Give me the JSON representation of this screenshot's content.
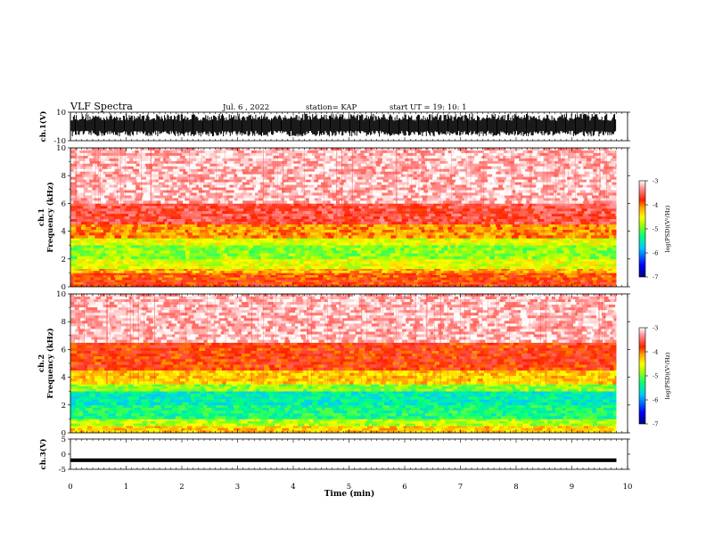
{
  "header": {
    "title": "VLF Spectra",
    "date": "Jul. 6 , 2022",
    "station": "station= KAP",
    "start": "start UT =  19: 10: 1"
  },
  "chart_data": [
    {
      "type": "line",
      "name": "ch1-waveform",
      "ylabel": "ch.1(V)",
      "ylim": [
        -10,
        10
      ],
      "y_ticks": [
        "10",
        "-10"
      ],
      "xlim": [
        0,
        10
      ],
      "note": "dense saturated waveform filling most of the range, from about -7 V to 9 V"
    },
    {
      "type": "heatmap",
      "name": "ch1-spectrogram",
      "ylabel": "ch.1\nFrequency (kHz)",
      "ylim": [
        0,
        10
      ],
      "y_ticks": [
        "0",
        "2",
        "4",
        "6",
        "8",
        "10"
      ],
      "xlim": [
        0,
        9.8
      ],
      "bands": [
        {
          "from_khz": 0.0,
          "to_khz": 0.5,
          "level": -3.8
        },
        {
          "from_khz": 0.5,
          "to_khz": 1.0,
          "level": -3.9
        },
        {
          "from_khz": 1.0,
          "to_khz": 1.3,
          "level": -4.2
        },
        {
          "from_khz": 1.3,
          "to_khz": 2.0,
          "level": -4.6
        },
        {
          "from_khz": 2.0,
          "to_khz": 3.0,
          "level": -4.9
        },
        {
          "from_khz": 3.0,
          "to_khz": 3.5,
          "level": -4.6
        },
        {
          "from_khz": 3.5,
          "to_khz": 4.5,
          "level": -4.1
        },
        {
          "from_khz": 4.5,
          "to_khz": 6.0,
          "level": -3.6
        },
        {
          "from_khz": 6.0,
          "to_khz": 10.0,
          "level": -3.2
        }
      ],
      "colorbar": {
        "label": "log(PSD)(V²/Hz)",
        "range": [
          -7,
          -3
        ],
        "ticks": [
          "-3",
          "-4",
          "-5",
          "-6",
          "-7"
        ]
      }
    },
    {
      "type": "heatmap",
      "name": "ch2-spectrogram",
      "ylabel": "ch.2\nFrequency (kHz)",
      "ylim": [
        0,
        10
      ],
      "y_ticks": [
        "0",
        "2",
        "4",
        "6",
        "8",
        "10"
      ],
      "xlim": [
        0,
        9.8
      ],
      "bands": [
        {
          "from_khz": 0.0,
          "to_khz": 0.5,
          "level": -4.3
        },
        {
          "from_khz": 0.5,
          "to_khz": 1.0,
          "level": -4.8
        },
        {
          "from_khz": 1.0,
          "to_khz": 2.0,
          "level": -5.3
        },
        {
          "from_khz": 2.0,
          "to_khz": 3.0,
          "level": -5.5
        },
        {
          "from_khz": 3.0,
          "to_khz": 3.5,
          "level": -4.9
        },
        {
          "from_khz": 3.5,
          "to_khz": 4.5,
          "level": -4.3
        },
        {
          "from_khz": 4.5,
          "to_khz": 6.5,
          "level": -3.8
        },
        {
          "from_khz": 6.5,
          "to_khz": 10.0,
          "level": -3.2
        }
      ],
      "colorbar": {
        "label": "log(PSD)(V²/Hz)",
        "range": [
          -7,
          -3
        ],
        "ticks": [
          "-3",
          "-4",
          "-5",
          "-6",
          "-7"
        ]
      }
    },
    {
      "type": "line",
      "name": "ch3-waveform",
      "ylabel": "ch.3(V)",
      "ylim": [
        -5,
        5
      ],
      "y_ticks": [
        "5",
        "0",
        "-5"
      ],
      "xlim": [
        0,
        10
      ],
      "note": "thin band around -1.5 V to -2.5 V"
    }
  ],
  "x_axis": {
    "label": "Time (min)",
    "ticks": [
      "0",
      "1",
      "2",
      "3",
      "4",
      "5",
      "6",
      "7",
      "8",
      "9",
      "10"
    ],
    "range": [
      0,
      10
    ]
  },
  "colors": {
    "scale": [
      "#000080",
      "#0000ff",
      "#00c8ff",
      "#00ff80",
      "#aaff00",
      "#ffff00",
      "#ffa500",
      "#ff2000",
      "#ff8080",
      "#ffffff"
    ]
  }
}
